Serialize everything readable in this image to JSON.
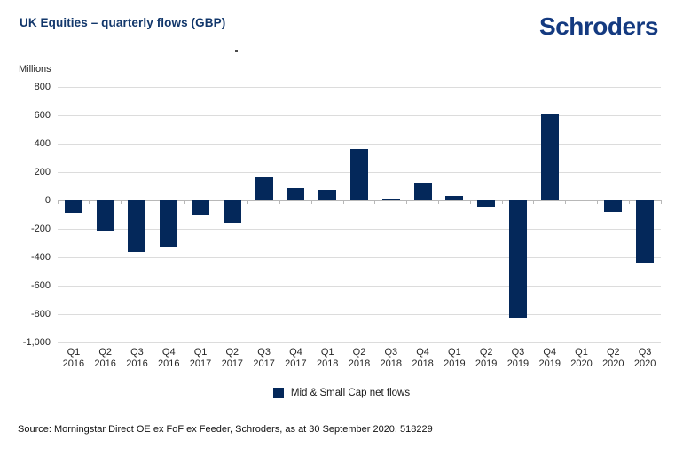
{
  "header": {
    "title": "UK Equities – quarterly flows (GBP)",
    "brand": "Schroders"
  },
  "colors": {
    "bar_navy": "#04285a",
    "title_navy": "#12376b",
    "logo_blue": "#143a80",
    "gridline": "#dcdcdc",
    "zero_axis": "#b8b8b8",
    "text": "#262626"
  },
  "chart_data": {
    "type": "bar",
    "title": "UK Equities – quarterly flows (GBP)",
    "units_label": "Millions",
    "categories": [
      "Q1 2016",
      "Q2 2016",
      "Q3 2016",
      "Q4 2016",
      "Q1 2017",
      "Q2 2017",
      "Q3 2017",
      "Q4 2017",
      "Q1 2018",
      "Q2 2018",
      "Q3 2018",
      "Q4 2018",
      "Q1 2019",
      "Q2 2019",
      "Q3 2019",
      "Q4 2019",
      "Q1 2020",
      "Q2 2020",
      "Q3 2020"
    ],
    "values": [
      -90,
      -215,
      -360,
      -325,
      -100,
      -155,
      165,
      85,
      75,
      365,
      10,
      125,
      30,
      -45,
      -825,
      605,
      5,
      -80,
      -440
    ],
    "series": [
      {
        "name": "Mid & Small Cap net flows",
        "color": "#04285a"
      }
    ],
    "xlabel": "",
    "ylabel": "Millions",
    "ylim": [
      -1000,
      800
    ],
    "ytick_step": 200,
    "ytick_labels": [
      "800",
      "600",
      "400",
      "200",
      "0",
      "-200",
      "-400",
      "-600",
      "-800",
      "-1,000"
    ],
    "grid": true,
    "legend_position": "bottom"
  },
  "legend": {
    "label": "Mid & Small Cap net flows"
  },
  "source": "Source: Morningstar Direct OE ex FoF ex Feeder, Schroders, as at 30 September 2020. 518229"
}
